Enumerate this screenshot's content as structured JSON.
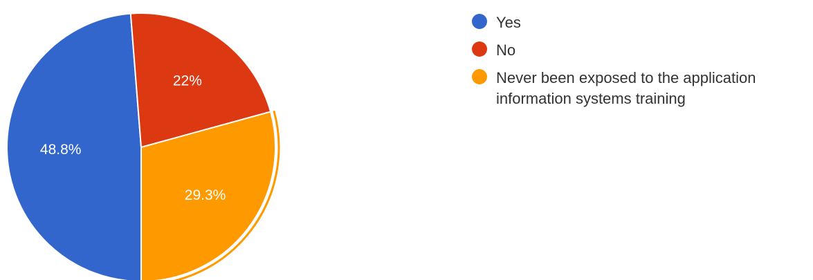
{
  "chart_data": {
    "type": "pie",
    "slices": [
      {
        "label": "Yes",
        "value": 48.8,
        "display": "48.8%",
        "color": "#3366cc"
      },
      {
        "label": "No",
        "value": 22.0,
        "display": "22%",
        "color": "#dc3912"
      },
      {
        "label": "Never been exposed to the application\ninformation systems training",
        "value": 29.3,
        "display": "29.3%",
        "color": "#ff9900"
      }
    ],
    "highlighted_slice": "Never been exposed to the application\ninformation systems training",
    "legend_position": "right"
  }
}
